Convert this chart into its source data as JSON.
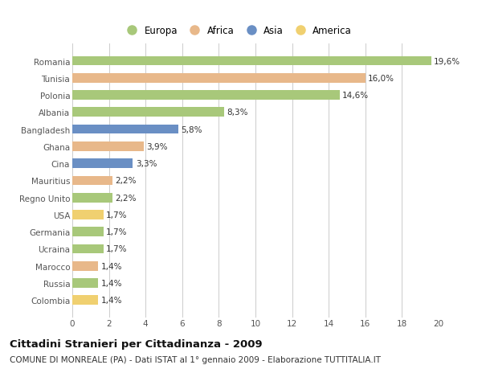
{
  "countries": [
    "Romania",
    "Tunisia",
    "Polonia",
    "Albania",
    "Bangladesh",
    "Ghana",
    "Cina",
    "Mauritius",
    "Regno Unito",
    "USA",
    "Germania",
    "Ucraina",
    "Marocco",
    "Russia",
    "Colombia"
  ],
  "values": [
    19.6,
    16.0,
    14.6,
    8.3,
    5.8,
    3.9,
    3.3,
    2.2,
    2.2,
    1.7,
    1.7,
    1.7,
    1.4,
    1.4,
    1.4
  ],
  "labels": [
    "19,6%",
    "16,0%",
    "14,6%",
    "8,3%",
    "5,8%",
    "3,9%",
    "3,3%",
    "2,2%",
    "2,2%",
    "1,7%",
    "1,7%",
    "1,7%",
    "1,4%",
    "1,4%",
    "1,4%"
  ],
  "continents": [
    "Europa",
    "Africa",
    "Europa",
    "Europa",
    "Asia",
    "Africa",
    "Asia",
    "Africa",
    "Europa",
    "America",
    "Europa",
    "Europa",
    "Africa",
    "Europa",
    "America"
  ],
  "continent_colors": {
    "Europa": "#a8c87a",
    "Africa": "#e8b88a",
    "Asia": "#6a8fc4",
    "America": "#f0d070"
  },
  "legend_order": [
    "Europa",
    "Africa",
    "Asia",
    "America"
  ],
  "title": "Cittadini Stranieri per Cittadinanza - 2009",
  "subtitle": "COMUNE DI MONREALE (PA) - Dati ISTAT al 1° gennaio 2009 - Elaborazione TUTTITALIA.IT",
  "xlim": [
    0,
    20
  ],
  "xticks": [
    0,
    2,
    4,
    6,
    8,
    10,
    12,
    14,
    16,
    18,
    20
  ],
  "background_color": "#ffffff",
  "grid_color": "#cccccc",
  "bar_height": 0.55,
  "label_fontsize": 7.5,
  "tick_fontsize": 7.5,
  "title_fontsize": 9.5,
  "subtitle_fontsize": 7.5
}
